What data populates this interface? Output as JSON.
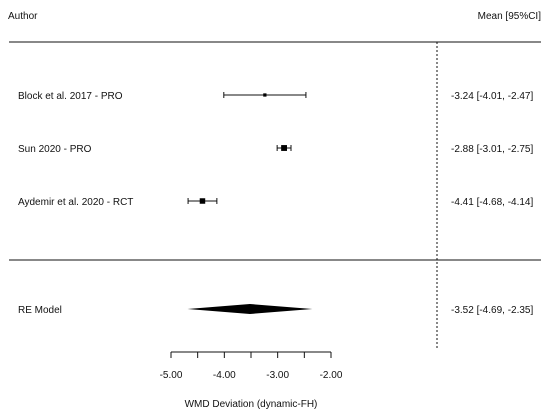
{
  "chart_data": {
    "type": "forest",
    "header": {
      "left": "Author",
      "right": "Mean [95%CI]"
    },
    "studies": [
      {
        "label": "Block et al. 2017 - PRO",
        "mean": -3.24,
        "lower": -4.01,
        "upper": -2.47,
        "ci_text": "-3.24 [-4.01, -2.47]",
        "weight": 0.18
      },
      {
        "label": "Sun 2020 - PRO",
        "mean": -2.88,
        "lower": -3.01,
        "upper": -2.75,
        "ci_text": "-2.88 [-3.01, -2.75]",
        "weight": 0.55
      },
      {
        "label": "Aydemir et al. 2020 - RCT",
        "mean": -4.41,
        "lower": -4.68,
        "upper": -4.14,
        "ci_text": "-4.41 [-4.68, -4.14]",
        "weight": 0.5
      }
    ],
    "summary": {
      "label": "RE Model",
      "mean": -3.52,
      "lower": -4.69,
      "upper": -2.35,
      "ci_text": "-3.52 [-4.69, -2.35]"
    },
    "xaxis": {
      "label": "WMD Deviation (dynamic-FH)",
      "ticks": [
        -5.0,
        -4.5,
        -4.0,
        -3.5,
        -3.0,
        -2.5,
        -2.0
      ],
      "tick_labels": [
        "-5.00",
        "-4.00",
        "-3.00",
        "-2.00"
      ],
      "labeled_values": [
        -5.0,
        -4.0,
        -3.0,
        -2.0
      ],
      "range": [
        -5.0,
        -2.0
      ]
    },
    "reference_line": 0,
    "colors": {
      "ink": "#111111",
      "box": "#000000",
      "diamond": "#000000",
      "refline": "#111111"
    }
  }
}
